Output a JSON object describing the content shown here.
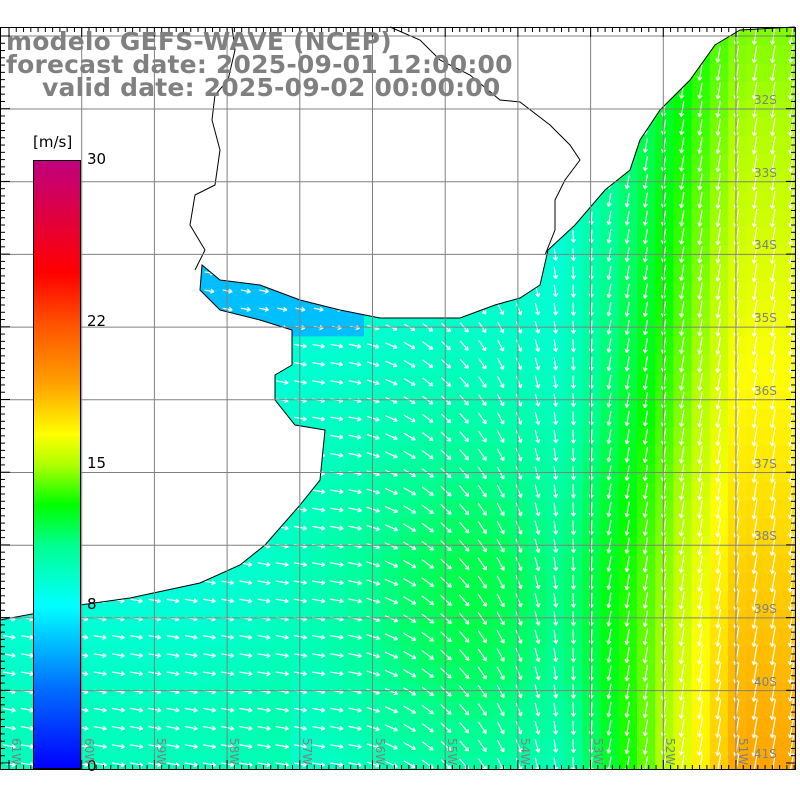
{
  "title": {
    "line1": "modelo GEFS-WAVE (NCEP)",
    "line2": "forecast date: 2025-09-01 12:00:00",
    "line3": "valid date: 2025-09-02 00:00:00"
  },
  "colorbar": {
    "unit": "[m/s]",
    "min": 0,
    "max": 30,
    "labels": [
      "30",
      "22",
      "15",
      "8",
      "0"
    ],
    "label_values": [
      30,
      22,
      15,
      8,
      0
    ],
    "stops": [
      {
        "v": 0,
        "c": "#0000ff"
      },
      {
        "v": 4,
        "c": "#0070ff"
      },
      {
        "v": 8,
        "c": "#00ffff"
      },
      {
        "v": 11,
        "c": "#00ff90"
      },
      {
        "v": 13,
        "c": "#00ff00"
      },
      {
        "v": 15,
        "c": "#b0ff00"
      },
      {
        "v": 16.5,
        "c": "#ffff00"
      },
      {
        "v": 19,
        "c": "#ffa000"
      },
      {
        "v": 22,
        "c": "#ff5000"
      },
      {
        "v": 24.5,
        "c": "#ff0000"
      },
      {
        "v": 30,
        "c": "#c0007f"
      }
    ]
  },
  "axes": {
    "longitudes": [
      "61W",
      "60W",
      "59W",
      "58W",
      "57W",
      "56W",
      "55W",
      "54W",
      "53W",
      "52W",
      "51W"
    ],
    "latitudes": [
      "32S",
      "33S",
      "34S",
      "35S",
      "36S",
      "37S",
      "38S",
      "39S",
      "40S",
      "41S"
    ]
  },
  "colors": {
    "grid": "#808080",
    "land": "#ffffff",
    "coast": "#000000",
    "arrow": "#ffffff"
  }
}
